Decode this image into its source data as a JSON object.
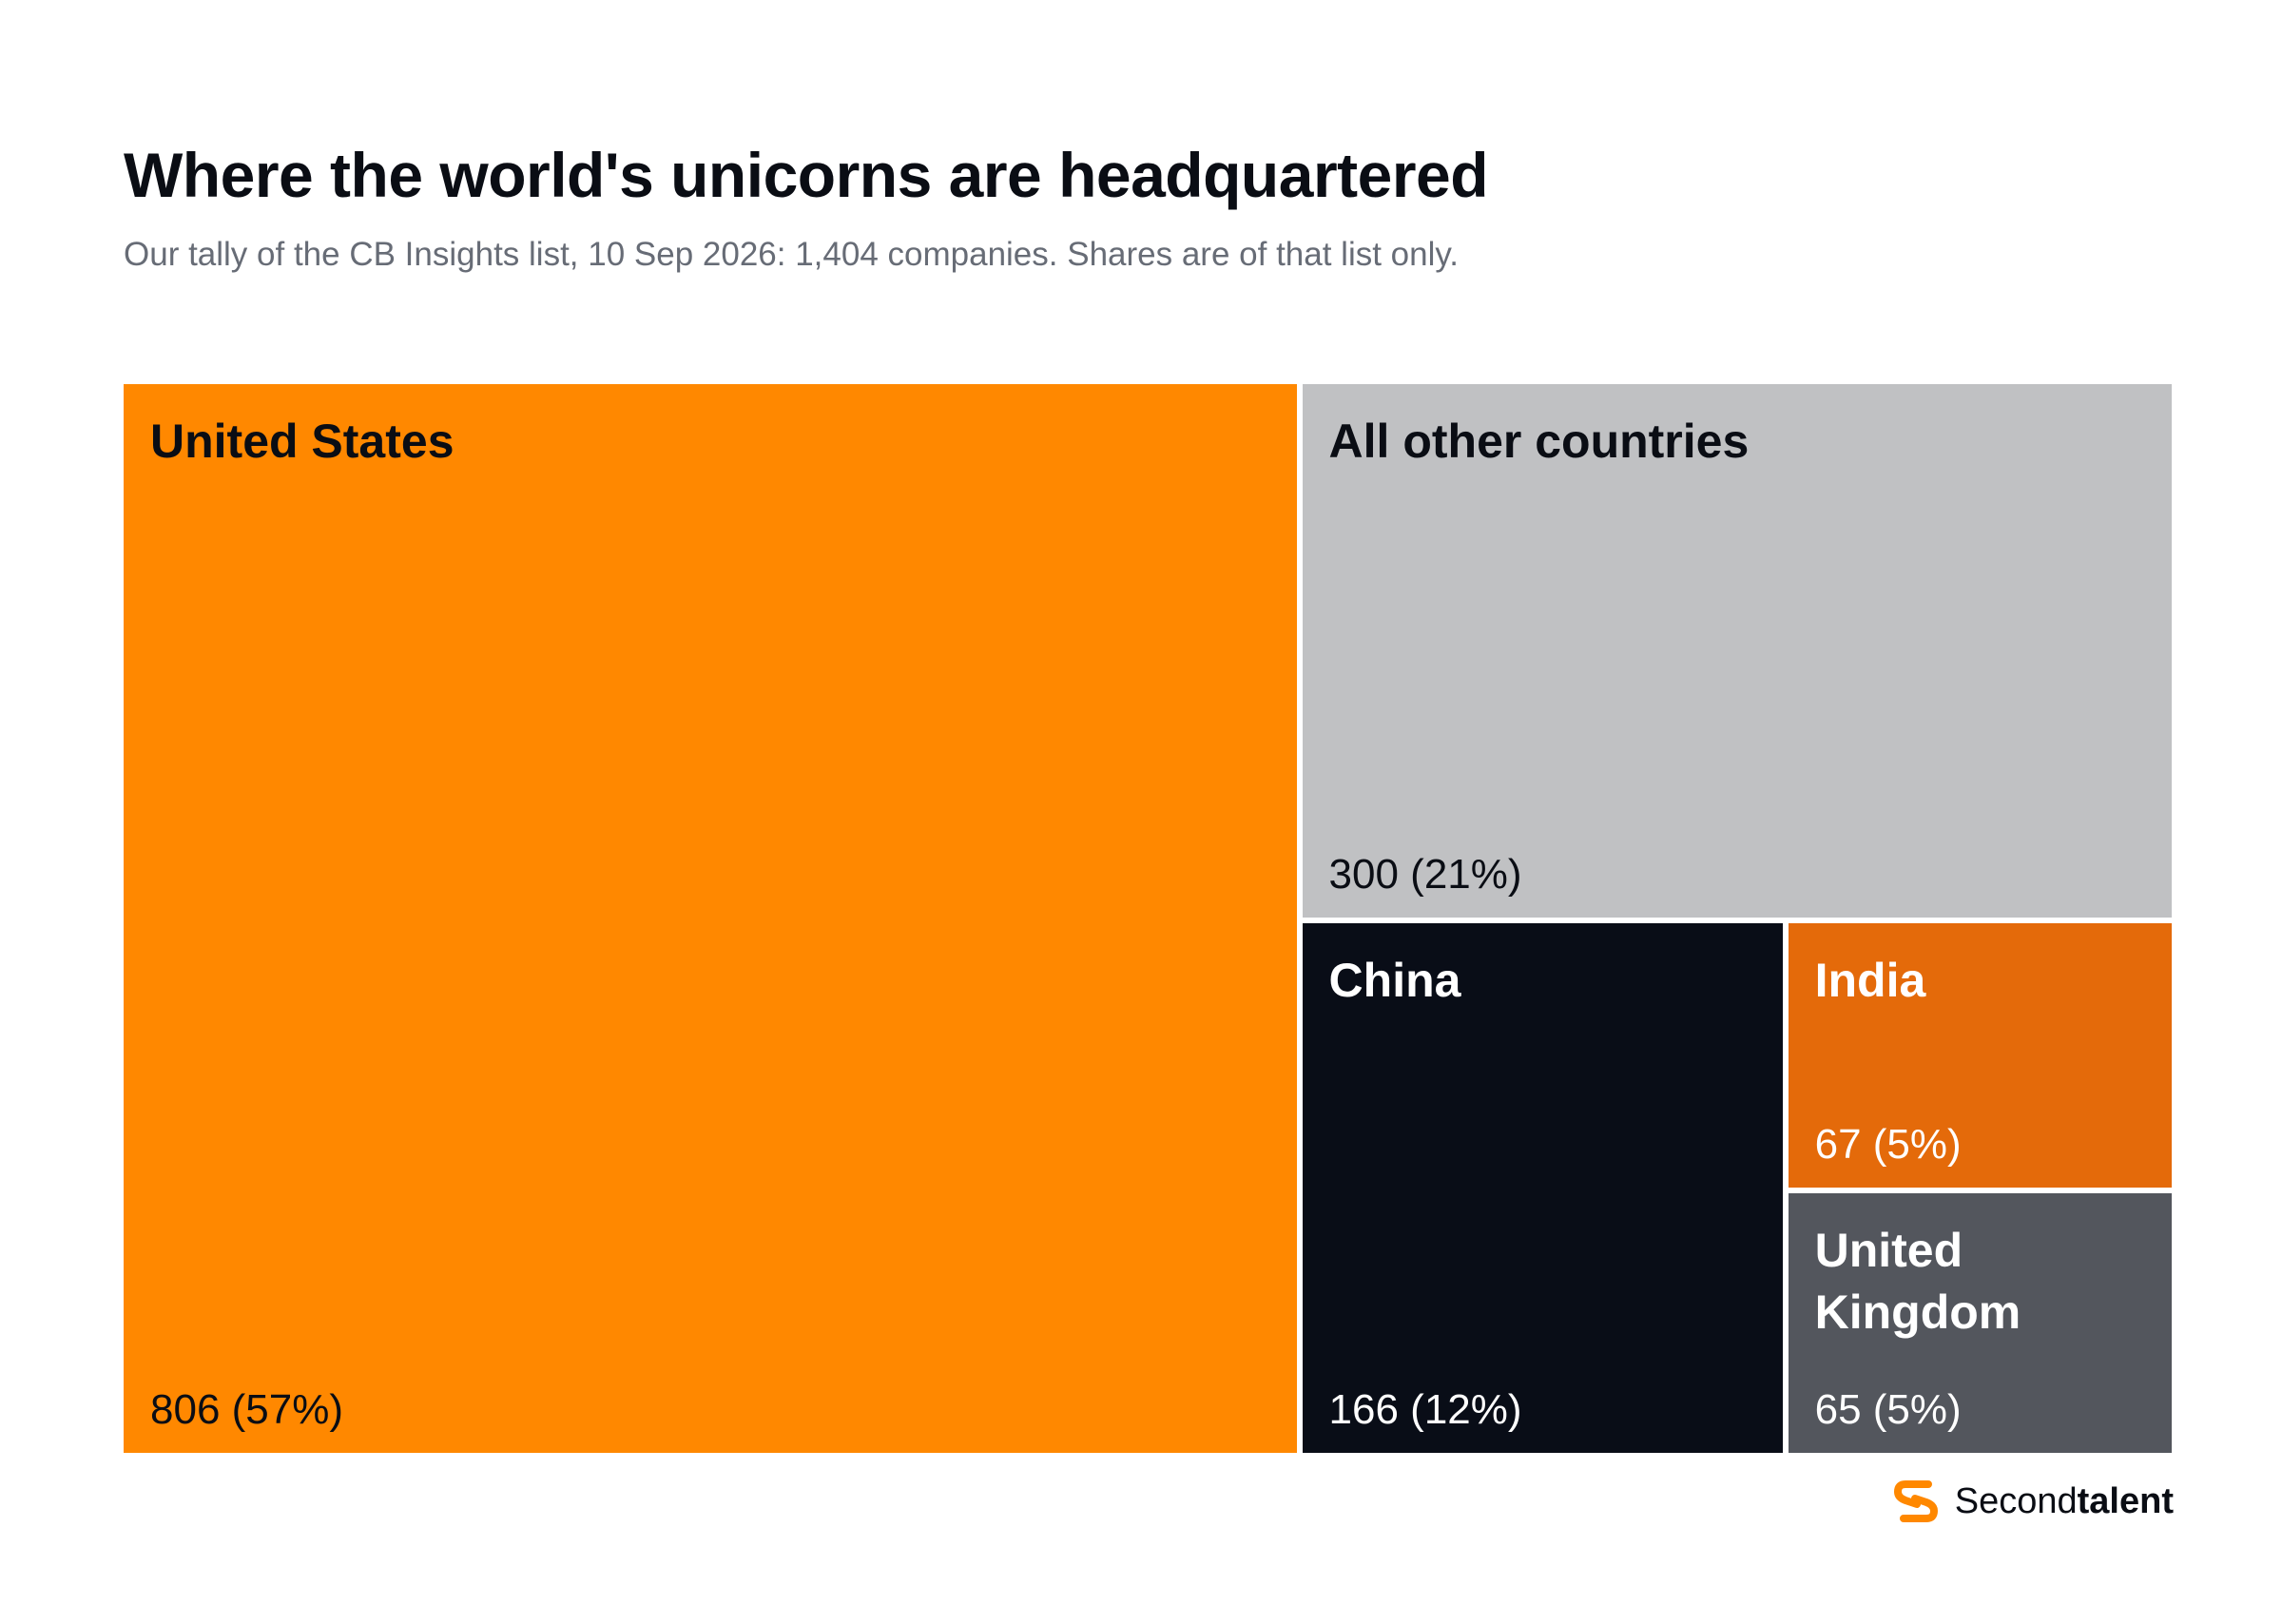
{
  "title": "Where the world's unicorns are headquartered",
  "subtitle": "Our tally of the CB Insights list, 10 Sep 2026: 1,404 companies. Shares are of that list only.",
  "chart_data": {
    "type": "treemap",
    "title": "Where the world's unicorns are headquartered",
    "subtitle": "Our tally of the CB Insights list, 10 Sep 2026: 1,404 companies. Shares are of that list only.",
    "total": 1404,
    "items": [
      {
        "name": "United States",
        "value": 806,
        "share": 57,
        "label": "806 (57%)",
        "color": "#ff8800",
        "text_color": "#0a0d14"
      },
      {
        "name": "All other countries",
        "value": 300,
        "share": 21,
        "label": "300 (21%)",
        "color": "#c0c1c3",
        "text_color": "#0a0d14"
      },
      {
        "name": "China",
        "value": 166,
        "share": 12,
        "label": "166 (12%)",
        "color": "#090d17",
        "text_color": "#ffffff"
      },
      {
        "name": "India",
        "value": 67,
        "share": 5,
        "label": "67 (5%)",
        "color": "#e46a0a",
        "text_color": "#ffffff"
      },
      {
        "name": "United Kingdom",
        "value": 65,
        "share": 5,
        "label": "65 (5%)",
        "color": "#53565d",
        "text_color": "#ffffff"
      }
    ]
  },
  "brand": {
    "name_regular": "Second",
    "name_bold": "talent",
    "logo_icon": "secondtalent-s-icon",
    "logo_color": "#ff8800"
  }
}
